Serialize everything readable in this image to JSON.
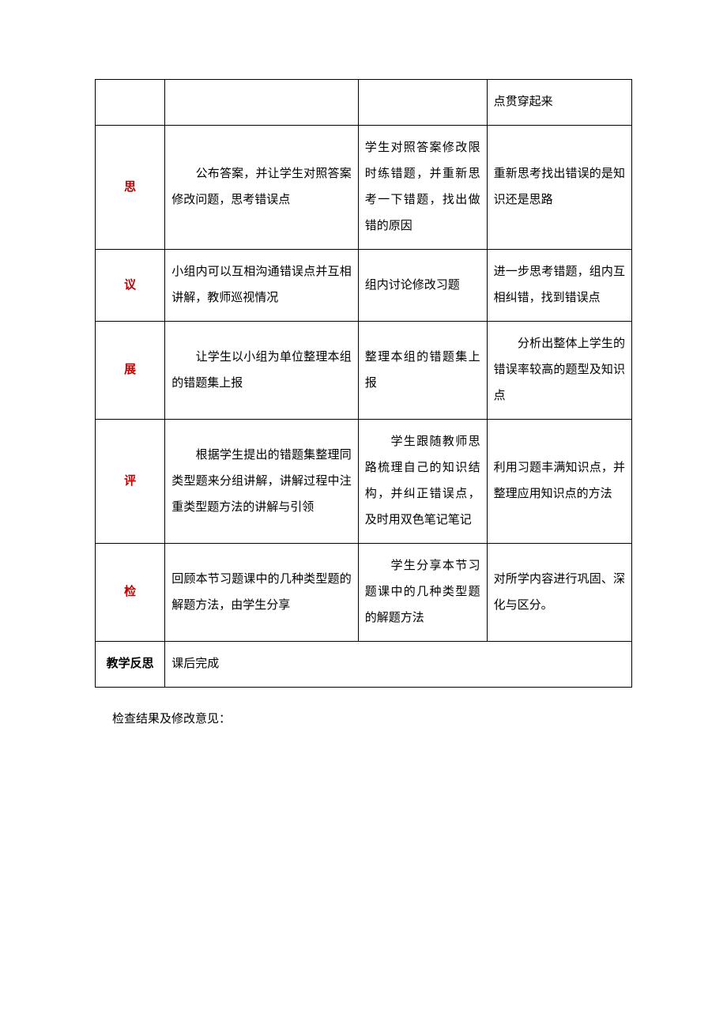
{
  "colors": {
    "background": "#ffffff",
    "text": "#000000",
    "border": "#000000",
    "red_text": "#c00000"
  },
  "typography": {
    "font_family": "SimSun",
    "font_size_pt": 12,
    "line_height": 2.2
  },
  "table": {
    "type": "table",
    "column_widths_pct": [
      13,
      36,
      24,
      27
    ],
    "rows": [
      {
        "cells": [
          "",
          "",
          "",
          "点贯穿起来"
        ]
      },
      {
        "label": "思",
        "label_red": true,
        "col2": "　　公布答案，并让学生对照答案修改问题，思考错误点",
        "col3": "学生对照答案修改限时练错题，并重新思考一下错题，找出做错的原因",
        "col4": "重新思考找出错误的是知识还是思路"
      },
      {
        "label": "议",
        "label_red": true,
        "col2": "小组内可以互相沟通错误点并互相讲解，教师巡视情况",
        "col3": "组内讨论修改习题",
        "col4": "进一步思考错题，组内互相纠错，找到错误点"
      },
      {
        "label": "展",
        "label_red": true,
        "col2": "　　让学生以小组为单位整理本组的错题集上报",
        "col3": "整理本组的错题集上报",
        "col4": "　　分析出整体上学生的错误率较高的题型及知识点"
      },
      {
        "label": "评",
        "label_red": true,
        "col2": "　　根据学生提出的错题集整理同类型题来分组讲解，讲解过程中注重类型题方法的讲解与引领",
        "col3": "　　学生跟随教师思路梳理自己的知识结构，并纠正错误点，及时用双色笔记笔记",
        "col4": "利用习题丰满知识点，并整理应用知识点的方法"
      },
      {
        "label": "检",
        "label_red": true,
        "col2": "回顾本节习题课中的几种类型题的解题方法，由学生分享",
        "col3": "　　学生分享本节习题课中的几种类型题的解题方法",
        "col4": "对所学内容进行巩固、深化与区分。"
      },
      {
        "label": "教学反思",
        "merged_text": "课后完成"
      }
    ]
  },
  "footer": "检查结果及修改意见："
}
